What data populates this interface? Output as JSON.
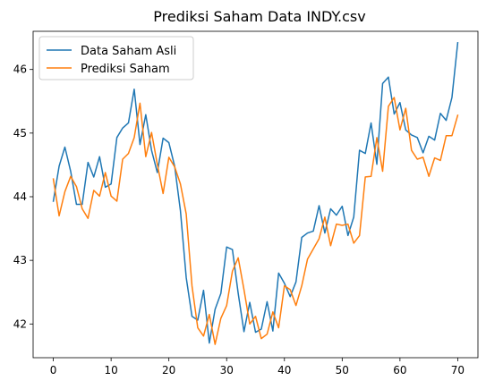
{
  "chart_data": {
    "type": "line",
    "title": "Prediksi Saham Data INDY.csv",
    "xlabel": "",
    "ylabel": "",
    "xlim": [
      -3.5,
      73.5
    ],
    "ylim": [
      41.47,
      46.6
    ],
    "xticks": [
      0,
      10,
      20,
      30,
      40,
      50,
      60,
      70
    ],
    "yticks": [
      42,
      43,
      44,
      45,
      46
    ],
    "grid": false,
    "legend_position": "top-left",
    "series": [
      {
        "name": "Data Saham Asli",
        "color": "#1f77b4",
        "x": [
          0,
          1,
          2,
          3,
          4,
          5,
          6,
          7,
          8,
          9,
          10,
          11,
          12,
          13,
          14,
          15,
          16,
          17,
          18,
          19,
          20,
          21,
          22,
          23,
          24,
          25,
          26,
          27,
          28,
          29,
          30,
          31,
          32,
          33,
          34,
          35,
          36,
          37,
          38,
          39,
          40,
          41,
          42,
          43,
          44,
          45,
          46,
          47,
          48,
          49,
          50,
          51,
          52,
          53,
          54,
          55,
          56,
          57,
          58,
          59,
          60,
          61,
          62,
          63,
          64,
          65,
          66,
          67,
          68,
          69,
          70
        ],
        "values": [
          43.93,
          44.48,
          44.78,
          44.4,
          43.88,
          43.88,
          44.54,
          44.31,
          44.63,
          44.15,
          44.2,
          44.93,
          45.08,
          45.16,
          45.69,
          44.82,
          45.29,
          44.73,
          44.38,
          44.92,
          44.85,
          44.48,
          43.78,
          42.73,
          42.12,
          42.06,
          42.53,
          41.7,
          42.23,
          42.48,
          43.21,
          43.17,
          42.48,
          41.88,
          42.34,
          41.87,
          41.92,
          42.35,
          41.89,
          42.8,
          42.64,
          42.43,
          42.66,
          43.36,
          43.43,
          43.46,
          43.86,
          43.43,
          43.81,
          43.71,
          43.85,
          43.39,
          43.68,
          44.73,
          44.68,
          45.16,
          44.51,
          45.78,
          45.88,
          45.3,
          45.48,
          45.05,
          44.97,
          44.93,
          44.69,
          44.95,
          44.89,
          45.31,
          45.2,
          45.56,
          46.42
        ]
      },
      {
        "name": "Prediksi Saham",
        "color": "#ff7f0e",
        "x": [
          0,
          1,
          2,
          3,
          4,
          5,
          6,
          7,
          8,
          9,
          10,
          11,
          12,
          13,
          14,
          15,
          16,
          17,
          18,
          19,
          20,
          21,
          22,
          23,
          24,
          25,
          26,
          27,
          28,
          29,
          30,
          31,
          32,
          33,
          34,
          35,
          36,
          37,
          38,
          39,
          40,
          41,
          42,
          43,
          44,
          45,
          46,
          47,
          48,
          49,
          50,
          51,
          52,
          53,
          54,
          55,
          56,
          57,
          58,
          59,
          60,
          61,
          62,
          63,
          64,
          65,
          66,
          67,
          68,
          69,
          70
        ],
        "values": [
          44.28,
          43.7,
          44.08,
          44.32,
          44.16,
          43.81,
          43.66,
          44.1,
          44.01,
          44.38,
          44.01,
          43.93,
          44.59,
          44.68,
          44.93,
          45.47,
          44.63,
          45.01,
          44.51,
          44.05,
          44.62,
          44.47,
          44.2,
          43.73,
          42.6,
          41.94,
          41.81,
          42.15,
          41.68,
          42.09,
          42.29,
          42.83,
          43.04,
          42.54,
          42.0,
          42.12,
          41.77,
          41.84,
          42.19,
          41.94,
          42.6,
          42.54,
          42.29,
          42.6,
          43.02,
          43.18,
          43.34,
          43.68,
          43.23,
          43.57,
          43.55,
          43.57,
          43.27,
          43.39,
          44.31,
          44.32,
          44.93,
          44.4,
          45.42,
          45.56,
          45.05,
          45.39,
          44.73,
          44.59,
          44.62,
          44.32,
          44.61,
          44.57,
          44.96,
          44.96,
          45.28
        ]
      }
    ]
  }
}
